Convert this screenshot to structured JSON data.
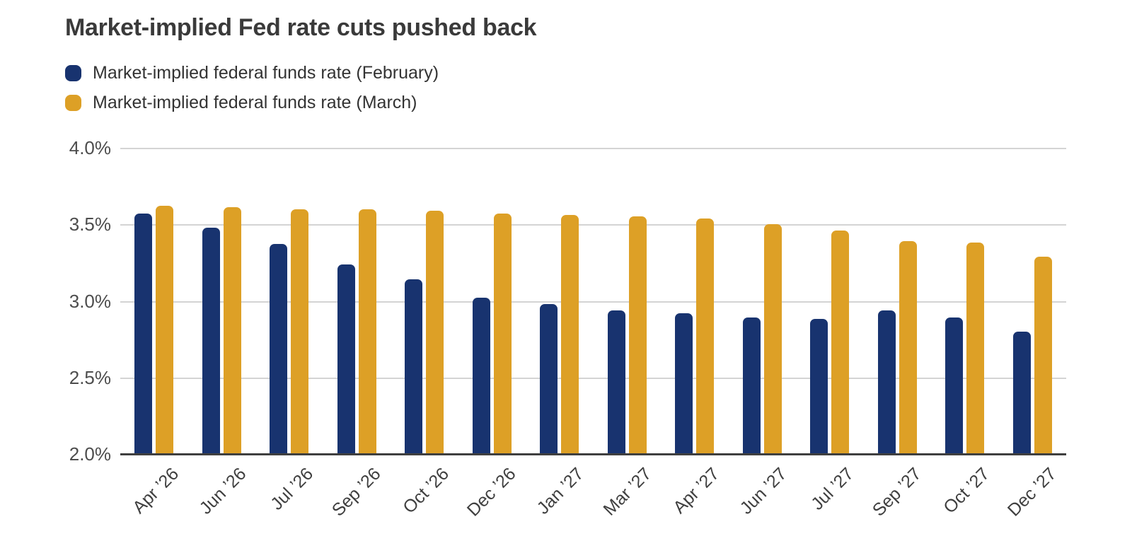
{
  "chart": {
    "title": "Market-implied Fed rate cuts pushed back"
  },
  "chart_data": {
    "type": "bar",
    "title": "Market-implied Fed rate cuts pushed back",
    "categories": [
      "Apr ’26",
      "Jun ’26",
      "Jul ’26",
      "Sep ’26",
      "Oct ’26",
      "Dec ’26",
      "Jan ’27",
      "Mar ’27",
      "Apr ’27",
      "Jun ’27",
      "Jul ’27",
      "Sep ’27",
      "Oct ’27",
      "Dec ’27"
    ],
    "series": [
      {
        "name": "Market-implied federal funds rate (February)",
        "color": "#18336F",
        "values": [
          3.57,
          3.48,
          3.37,
          3.24,
          3.14,
          3.02,
          2.98,
          2.94,
          2.92,
          2.89,
          2.88,
          2.94,
          2.89,
          2.8
        ]
      },
      {
        "name": "Market-implied federal funds rate (March)",
        "color": "#DDA026",
        "values": [
          3.62,
          3.61,
          3.6,
          3.6,
          3.59,
          3.57,
          3.56,
          3.55,
          3.54,
          3.5,
          3.46,
          3.39,
          3.38,
          3.29
        ]
      }
    ],
    "ylim": [
      2.0,
      4.0
    ],
    "yticks": [
      4.0,
      3.5,
      3.0,
      2.5,
      2.0
    ],
    "ytick_labels": [
      "4.0%",
      "3.5%",
      "3.0%",
      "2.5%",
      "2.0%"
    ],
    "xlabel": "",
    "ylabel": "",
    "grid": "horizontal",
    "legend_position": "top-left",
    "colors": {
      "gridline": "#d4d4d4",
      "axis_line": "#3f3f3f",
      "tick_text": "#4d4d4d",
      "title_text": "#3a3a3a"
    }
  }
}
